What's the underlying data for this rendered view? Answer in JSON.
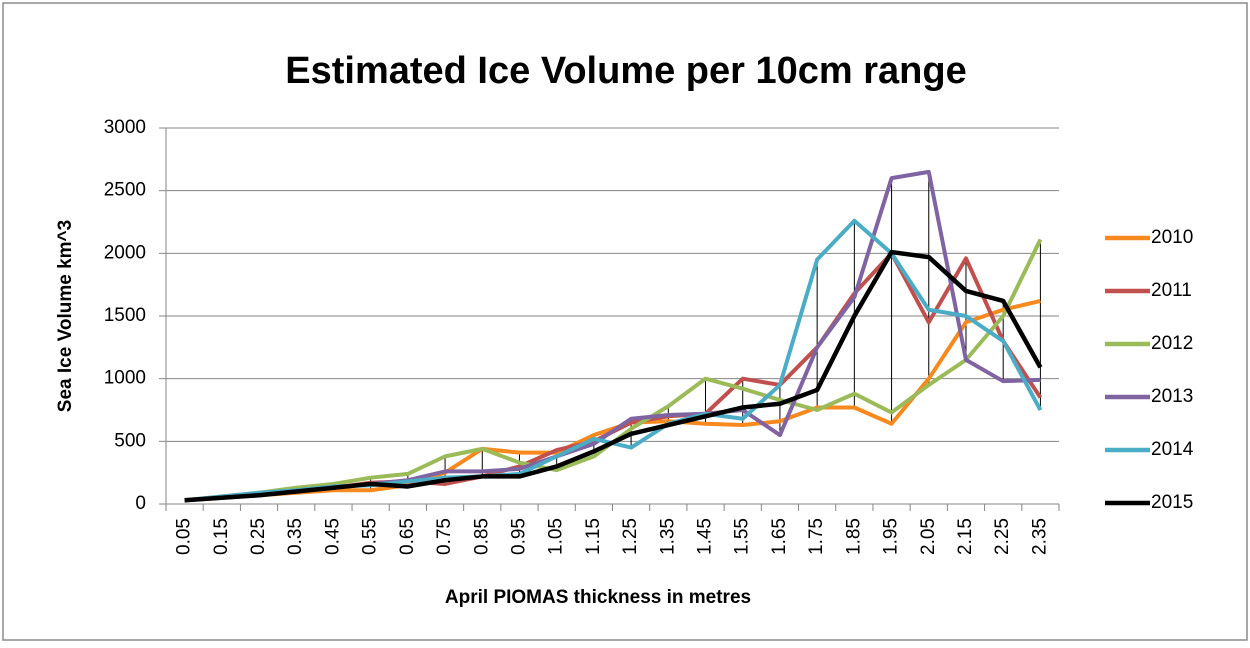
{
  "chart_data": {
    "type": "line",
    "title": "Estimated Ice Volume per 10cm range",
    "x_label": "April PIOMAS thickness in metres",
    "y_label": "Sea Ice Volume km^3",
    "categories": [
      "0.05",
      "0.15",
      "0.25",
      "0.35",
      "0.45",
      "0.55",
      "0.65",
      "0.75",
      "0.85",
      "0.95",
      "1.05",
      "1.15",
      "1.25",
      "1.35",
      "1.45",
      "1.55",
      "1.65",
      "1.75",
      "1.85",
      "1.95",
      "2.05",
      "2.15",
      "2.25",
      "2.35"
    ],
    "series": [
      {
        "name": "2010",
        "color": "#f7891e",
        "values": [
          30,
          50,
          70,
          90,
          110,
          110,
          150,
          250,
          440,
          410,
          410,
          550,
          650,
          660,
          640,
          630,
          660,
          770,
          770,
          640,
          1000,
          1450,
          1550,
          1620
        ]
      },
      {
        "name": "2011",
        "color": "#c0504d",
        "values": [
          30,
          50,
          70,
          100,
          130,
          170,
          180,
          160,
          220,
          300,
          430,
          500,
          650,
          700,
          720,
          1000,
          950,
          1250,
          1680,
          2000,
          1450,
          1960,
          1300,
          850
        ]
      },
      {
        "name": "2012",
        "color": "#9bbb59",
        "values": [
          30,
          60,
          90,
          130,
          160,
          210,
          240,
          380,
          440,
          330,
          270,
          380,
          600,
          780,
          1000,
          920,
          830,
          750,
          880,
          730,
          950,
          1150,
          1500,
          2110
        ]
      },
      {
        "name": "2013",
        "color": "#8064a2",
        "values": [
          30,
          50,
          70,
          100,
          130,
          160,
          190,
          260,
          260,
          280,
          380,
          480,
          680,
          710,
          720,
          750,
          550,
          1250,
          1650,
          2600,
          2650,
          1150,
          980,
          990
        ]
      },
      {
        "name": "2014",
        "color": "#4bacc6",
        "values": [
          30,
          60,
          90,
          110,
          140,
          150,
          180,
          210,
          220,
          240,
          380,
          520,
          450,
          640,
          720,
          680,
          950,
          1950,
          2260,
          2000,
          1550,
          1500,
          1300,
          750
        ]
      },
      {
        "name": "2015",
        "color": "#000000",
        "values": [
          30,
          50,
          70,
          100,
          130,
          160,
          140,
          190,
          220,
          220,
          300,
          420,
          560,
          630,
          700,
          770,
          800,
          910,
          1500,
          2010,
          1970,
          1700,
          1620,
          1090
        ]
      }
    ],
    "ylim": [
      0,
      3000
    ],
    "yticks": [
      0,
      500,
      1000,
      1500,
      2000,
      2500,
      3000
    ],
    "grid": true,
    "legend": "right",
    "high_low_lines": true
  }
}
